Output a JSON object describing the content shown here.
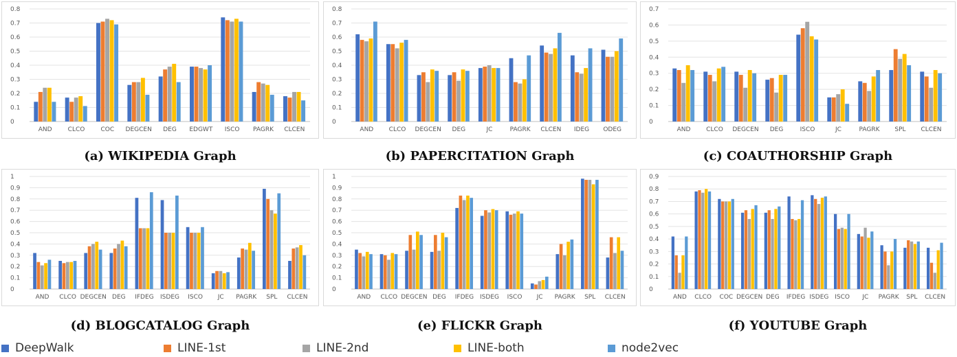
{
  "legend": {
    "items": [
      {
        "label": "DeepWalk",
        "color": "#4472c4"
      },
      {
        "label": "LINE-1st",
        "color": "#ed7d31"
      },
      {
        "label": "LINE-2nd",
        "color": "#a5a5a5"
      },
      {
        "label": "LINE-both",
        "color": "#ffc000"
      },
      {
        "label": "node2vec",
        "color": "#5b9bd5"
      }
    ]
  },
  "chart_data": [
    {
      "type": "bar",
      "caption": "(a) WIKIPEDIA Graph",
      "yticks": [
        "0",
        "0.1",
        "0.2",
        "0.3",
        "0.4",
        "0.5",
        "0.6",
        "0.7",
        "0.8"
      ],
      "ylim": [
        0,
        0.8
      ],
      "categories": [
        "AND",
        "CLCO",
        "COC",
        "DEGCEN",
        "DEG",
        "EDGWT",
        "ISCO",
        "PAGRK",
        "CLCEN"
      ],
      "series": [
        {
          "name": "DeepWalk",
          "values": [
            0.14,
            0.17,
            0.7,
            0.26,
            0.32,
            0.39,
            0.74,
            0.21,
            0.18
          ]
        },
        {
          "name": "LINE-1st",
          "values": [
            0.21,
            0.14,
            0.71,
            0.28,
            0.37,
            0.39,
            0.72,
            0.28,
            0.17
          ]
        },
        {
          "name": "LINE-2nd",
          "values": [
            0.24,
            0.17,
            0.73,
            0.28,
            0.39,
            0.38,
            0.71,
            0.27,
            0.21
          ]
        },
        {
          "name": "LINE-both",
          "values": [
            0.24,
            0.18,
            0.72,
            0.31,
            0.41,
            0.37,
            0.73,
            0.26,
            0.21
          ]
        },
        {
          "name": "node2vec",
          "values": [
            0.14,
            0.11,
            0.69,
            0.19,
            0.28,
            0.4,
            0.71,
            0.19,
            0.15
          ]
        }
      ]
    },
    {
      "type": "bar",
      "caption": "(b) PAPERCITATION Graph",
      "yticks": [
        "0",
        "0.1",
        "0.2",
        "0.3",
        "0.4",
        "0.5",
        "0.6",
        "0.7",
        "0.8"
      ],
      "ylim": [
        0,
        0.8
      ],
      "categories": [
        "AND",
        "CLCO",
        "DEGCEN",
        "DEG",
        "JC",
        "PAGRK",
        "CLCEN",
        "IDEG",
        "ODEG"
      ],
      "series": [
        {
          "name": "DeepWalk",
          "values": [
            0.62,
            0.55,
            0.33,
            0.33,
            0.38,
            0.45,
            0.54,
            0.47,
            0.51
          ]
        },
        {
          "name": "LINE-1st",
          "values": [
            0.58,
            0.55,
            0.35,
            0.35,
            0.39,
            0.28,
            0.49,
            0.35,
            0.46
          ]
        },
        {
          "name": "LINE-2nd",
          "values": [
            0.57,
            0.52,
            0.28,
            0.29,
            0.4,
            0.27,
            0.48,
            0.34,
            0.46
          ]
        },
        {
          "name": "LINE-both",
          "values": [
            0.59,
            0.56,
            0.37,
            0.37,
            0.38,
            0.3,
            0.52,
            0.38,
            0.5
          ]
        },
        {
          "name": "node2vec",
          "values": [
            0.71,
            0.58,
            0.36,
            0.36,
            0.38,
            0.47,
            0.63,
            0.52,
            0.59
          ]
        }
      ]
    },
    {
      "type": "bar",
      "caption": "(c) COAUTHORSHIP Graph",
      "yticks": [
        "0",
        "0.1",
        "0.2",
        "0.3",
        "0.4",
        "0.5",
        "0.6",
        "0.7"
      ],
      "ylim": [
        0,
        0.7
      ],
      "categories": [
        "AND",
        "CLCO",
        "DEGCEN",
        "DEG",
        "ISCO",
        "JC",
        "PAGRK",
        "SPL",
        "CLCEN"
      ],
      "series": [
        {
          "name": "DeepWalk",
          "values": [
            0.33,
            0.31,
            0.31,
            0.26,
            0.54,
            0.15,
            0.25,
            0.32,
            0.31
          ]
        },
        {
          "name": "LINE-1st",
          "values": [
            0.32,
            0.29,
            0.29,
            0.27,
            0.58,
            0.15,
            0.24,
            0.45,
            0.28
          ]
        },
        {
          "name": "LINE-2nd",
          "values": [
            0.24,
            0.25,
            0.21,
            0.18,
            0.62,
            0.17,
            0.19,
            0.39,
            0.21
          ]
        },
        {
          "name": "LINE-both",
          "values": [
            0.35,
            0.33,
            0.32,
            0.29,
            0.53,
            0.2,
            0.28,
            0.42,
            0.32
          ]
        },
        {
          "name": "node2vec",
          "values": [
            0.32,
            0.34,
            0.3,
            0.29,
            0.51,
            0.11,
            0.32,
            0.35,
            0.3
          ]
        }
      ]
    },
    {
      "type": "bar",
      "caption": "(d) BLOGCATALOG Graph",
      "yticks": [
        "0",
        "0.1",
        "0.2",
        "0.3",
        "0.4",
        "0.5",
        "0.6",
        "0.7",
        "0.8",
        "0.9",
        "1"
      ],
      "ylim": [
        0,
        1.0
      ],
      "categories": [
        "AND",
        "CLCO",
        "DEGCEN",
        "DEG",
        "IFDEG",
        "ISDEG",
        "ISCO",
        "JC",
        "PAGRK",
        "SPL",
        "CLCEN"
      ],
      "series": [
        {
          "name": "DeepWalk",
          "values": [
            0.32,
            0.25,
            0.32,
            0.32,
            0.81,
            0.79,
            0.55,
            0.14,
            0.28,
            0.89,
            0.25
          ]
        },
        {
          "name": "LINE-1st",
          "values": [
            0.24,
            0.23,
            0.38,
            0.36,
            0.54,
            0.5,
            0.5,
            0.16,
            0.36,
            0.8,
            0.36
          ]
        },
        {
          "name": "LINE-2nd",
          "values": [
            0.21,
            0.24,
            0.4,
            0.4,
            0.54,
            0.5,
            0.5,
            0.16,
            0.35,
            0.7,
            0.37
          ]
        },
        {
          "name": "LINE-both",
          "values": [
            0.23,
            0.24,
            0.42,
            0.43,
            0.54,
            0.5,
            0.5,
            0.14,
            0.41,
            0.67,
            0.39
          ]
        },
        {
          "name": "node2vec",
          "values": [
            0.26,
            0.25,
            0.35,
            0.38,
            0.86,
            0.83,
            0.55,
            0.15,
            0.34,
            0.85,
            0.3
          ]
        }
      ]
    },
    {
      "type": "bar",
      "caption": "(e) FLICKR Graph",
      "yticks": [
        "0",
        "0.1",
        "0.2",
        "0.3",
        "0.4",
        "0.5",
        "0.6",
        "0.7",
        "0.8",
        "0.9",
        "1"
      ],
      "ylim": [
        0,
        1.0
      ],
      "categories": [
        "AND",
        "CLCO",
        "DEGCEN",
        "DEG",
        "IFDEG",
        "ISDEG",
        "ISCO",
        "JC",
        "PAGRK",
        "SPL",
        "CLCEN"
      ],
      "series": [
        {
          "name": "DeepWalk",
          "values": [
            0.35,
            0.31,
            0.34,
            0.33,
            0.72,
            0.65,
            0.69,
            0.05,
            0.31,
            0.98,
            0.28
          ]
        },
        {
          "name": "LINE-1st",
          "values": [
            0.32,
            0.3,
            0.48,
            0.48,
            0.83,
            0.7,
            0.66,
            0.04,
            0.4,
            0.97,
            0.46
          ]
        },
        {
          "name": "LINE-2nd",
          "values": [
            0.29,
            0.26,
            0.35,
            0.34,
            0.79,
            0.68,
            0.67,
            0.07,
            0.3,
            0.97,
            0.32
          ]
        },
        {
          "name": "LINE-both",
          "values": [
            0.33,
            0.32,
            0.51,
            0.5,
            0.83,
            0.71,
            0.69,
            0.08,
            0.42,
            0.93,
            0.46
          ]
        },
        {
          "name": "node2vec",
          "values": [
            0.31,
            0.31,
            0.48,
            0.46,
            0.81,
            0.7,
            0.67,
            0.11,
            0.44,
            0.97,
            0.34
          ]
        }
      ]
    },
    {
      "type": "bar",
      "caption": "(f) YOUTUBE Graph",
      "yticks": [
        "0",
        "0.1",
        "0.2",
        "0.3",
        "0.4",
        "0.5",
        "0.6",
        "0.7",
        "0.8",
        "0.9"
      ],
      "ylim": [
        0,
        0.9
      ],
      "categories": [
        "AND",
        "CLCO",
        "COC",
        "DEGCEN",
        "DEG",
        "IFDEG",
        "ISDEG",
        "ISCO",
        "JC",
        "PAGRK",
        "SPL",
        "CLCEN"
      ],
      "series": [
        {
          "name": "DeepWalk",
          "values": [
            0.42,
            0.78,
            0.72,
            0.61,
            0.61,
            0.74,
            0.75,
            0.6,
            0.44,
            0.35,
            0.33,
            0.33
          ]
        },
        {
          "name": "LINE-1st",
          "values": [
            0.27,
            0.79,
            0.7,
            0.63,
            0.63,
            0.56,
            0.72,
            0.48,
            0.42,
            0.3,
            0.39,
            0.21
          ]
        },
        {
          "name": "LINE-2nd",
          "values": [
            0.13,
            0.77,
            0.7,
            0.56,
            0.56,
            0.55,
            0.68,
            0.49,
            0.49,
            0.19,
            0.38,
            0.13
          ]
        },
        {
          "name": "LINE-both",
          "values": [
            0.27,
            0.8,
            0.7,
            0.64,
            0.64,
            0.56,
            0.73,
            0.48,
            0.41,
            0.3,
            0.36,
            0.31
          ]
        },
        {
          "name": "node2vec",
          "values": [
            0.42,
            0.78,
            0.72,
            0.67,
            0.66,
            0.71,
            0.74,
            0.6,
            0.46,
            0.4,
            0.38,
            0.37
          ]
        }
      ]
    }
  ]
}
